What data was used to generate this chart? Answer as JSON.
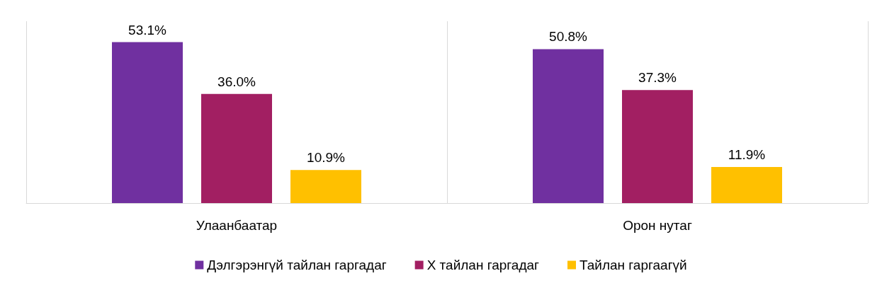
{
  "chart_data": {
    "type": "bar",
    "categories": [
      "Улаанбаатар",
      "Орон нутаг"
    ],
    "series": [
      {
        "name": "Дэлгэрэнгүй тайлан гаргадаг",
        "color": "#7030a0",
        "values": [
          53.1,
          50.8
        ],
        "value_labels": [
          "53.1%",
          "50.8%"
        ]
      },
      {
        "name": "Х тайлан гаргадаг",
        "color": "#a21f62",
        "values": [
          36.0,
          37.3
        ],
        "value_labels": [
          "36.0%",
          "37.3%"
        ]
      },
      {
        "name": "Тайлан гаргаагүй",
        "color": "#ffc000",
        "values": [
          10.9,
          11.9
        ],
        "value_labels": [
          "10.9%",
          "11.9%"
        ]
      }
    ],
    "grid": "x",
    "legend": "bottom"
  }
}
